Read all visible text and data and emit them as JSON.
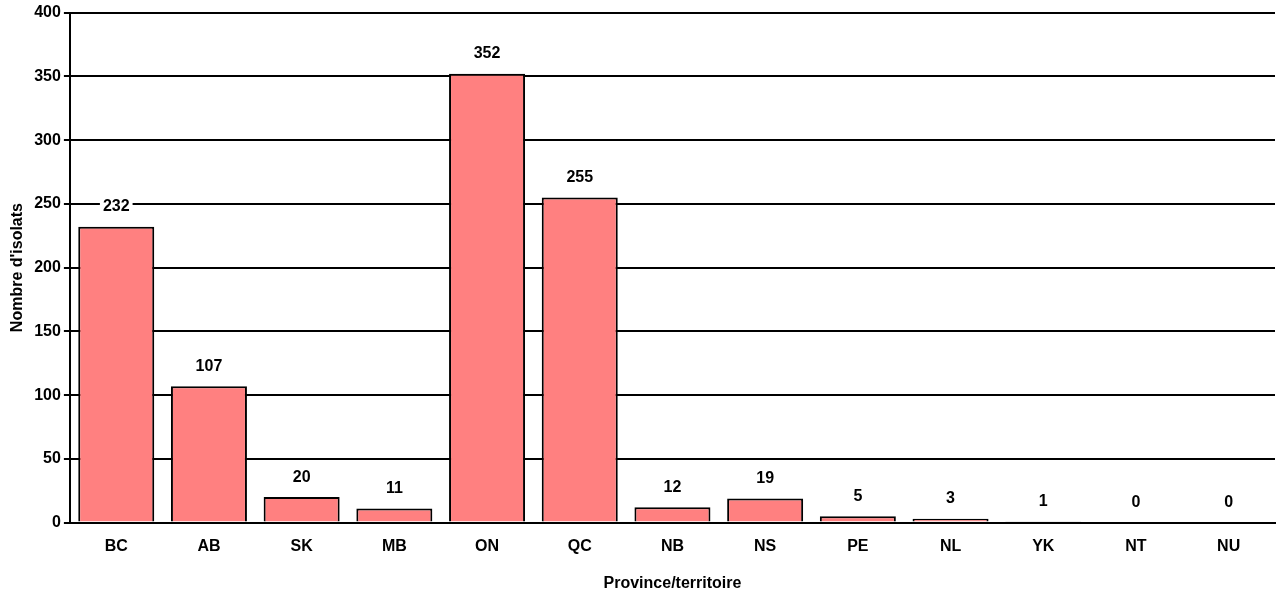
{
  "chart_data": {
    "type": "bar",
    "xlabel": "Province/territoire",
    "ylabel": "Nombre d'isolats",
    "categories": [
      "BC",
      "AB",
      "SK",
      "MB",
      "ON",
      "QC",
      "NB",
      "NS",
      "PE",
      "NL",
      "YK",
      "NT",
      "NU"
    ],
    "values": [
      232,
      107,
      20,
      11,
      352,
      255,
      12,
      19,
      5,
      3,
      1,
      0,
      0
    ],
    "color": "#ff8080",
    "ylim": [
      0,
      400
    ],
    "yticks": [
      0,
      50,
      100,
      150,
      200,
      250,
      300,
      350,
      400
    ],
    "grid": "y",
    "data_labels": true,
    "legend": false
  }
}
